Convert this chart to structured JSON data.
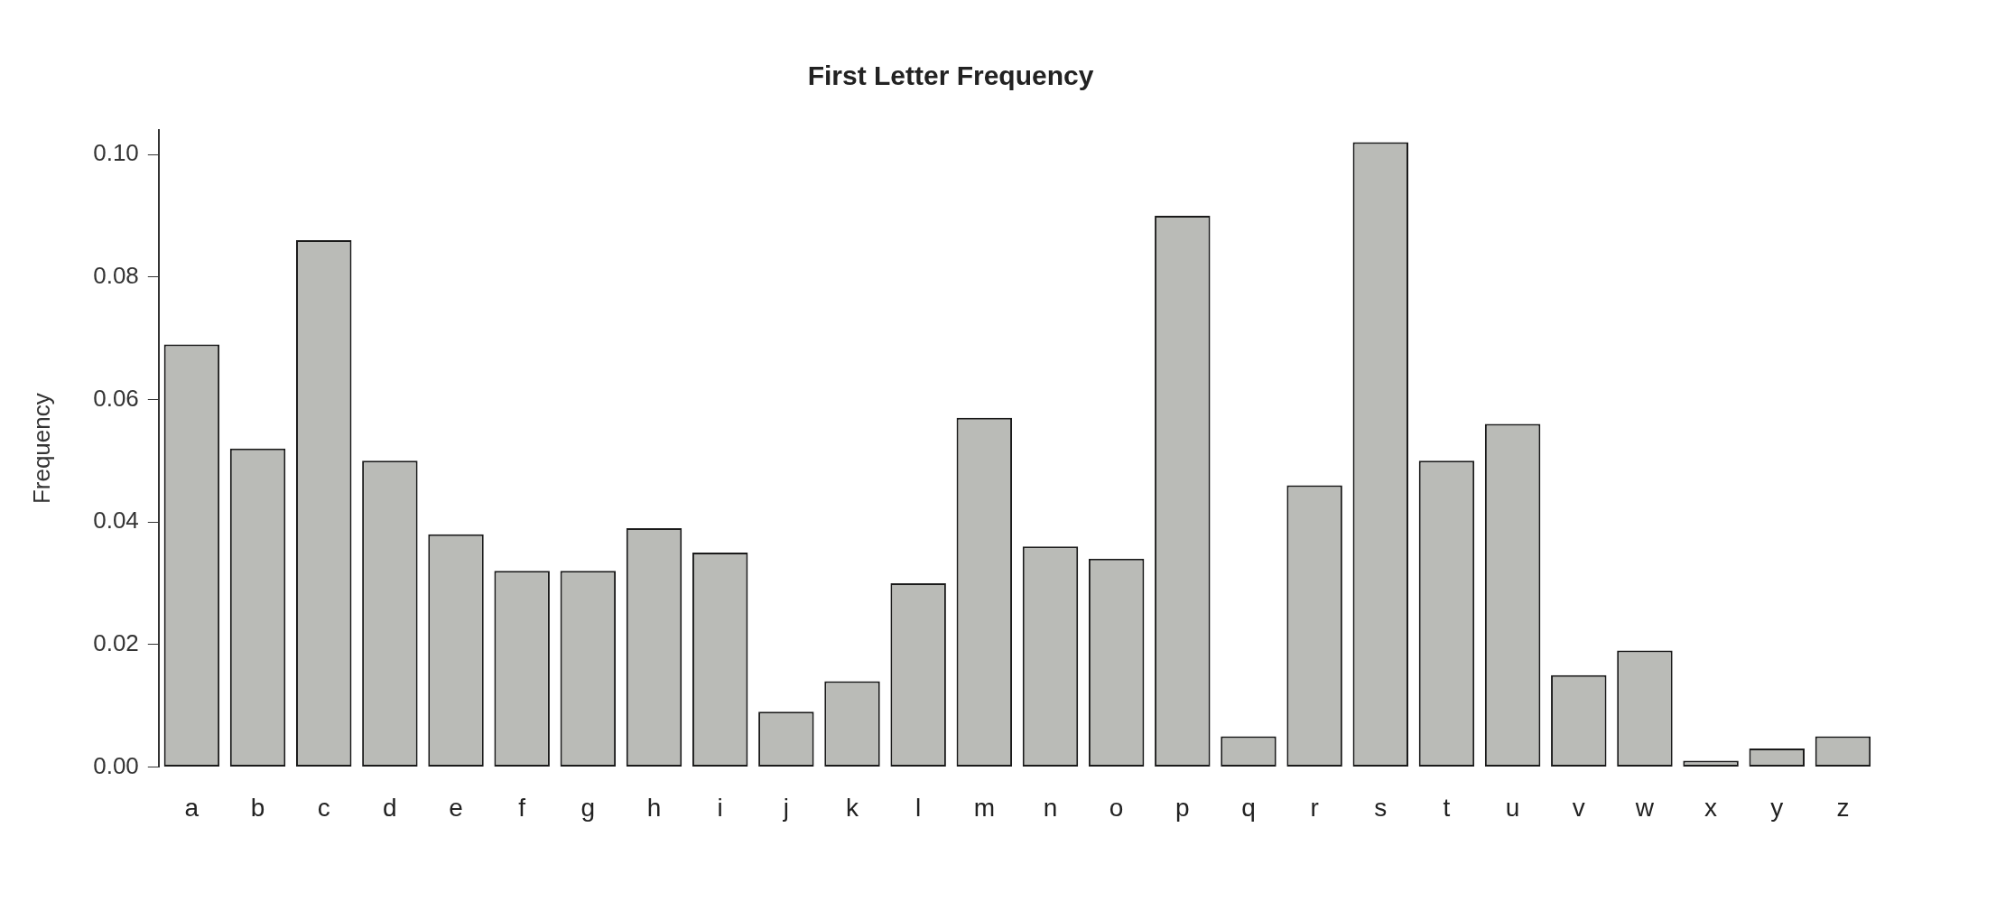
{
  "chart_data": {
    "type": "bar",
    "title": "First Letter Frequency",
    "ylabel": "Frequency",
    "categories": [
      "a",
      "b",
      "c",
      "d",
      "e",
      "f",
      "g",
      "h",
      "i",
      "j",
      "k",
      "l",
      "m",
      "n",
      "o",
      "p",
      "q",
      "r",
      "s",
      "t",
      "u",
      "v",
      "w",
      "x",
      "y",
      "z"
    ],
    "values": [
      0.069,
      0.052,
      0.086,
      0.05,
      0.038,
      0.032,
      0.032,
      0.039,
      0.035,
      0.009,
      0.014,
      0.03,
      0.057,
      0.036,
      0.034,
      0.09,
      0.005,
      0.046,
      0.102,
      0.05,
      0.056,
      0.015,
      0.019,
      0.001,
      0.003,
      0.005
    ],
    "color": "#babbb7",
    "ylim": [
      0,
      0.104
    ],
    "yticks": [
      {
        "value": 0,
        "label": "0.00"
      },
      {
        "value": 0.02,
        "label": "0.02"
      },
      {
        "value": 0.04,
        "label": "0.04"
      },
      {
        "value": 0.06,
        "label": "0.06"
      },
      {
        "value": 0.08,
        "label": "0.08"
      },
      {
        "value": 0.1,
        "label": "0.10"
      }
    ],
    "grid": false,
    "legend": false
  }
}
